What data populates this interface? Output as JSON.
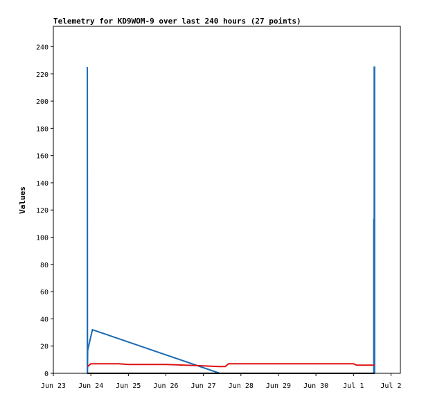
{
  "chart_data": {
    "type": "line",
    "title": "Telemetry for KD9WOM-9 over last 240 hours (27 points)",
    "ylabel": "Values",
    "xlabel": "",
    "ylim": [
      0,
      255
    ],
    "yticks": [
      0,
      20,
      40,
      60,
      80,
      100,
      120,
      140,
      160,
      180,
      200,
      220,
      240
    ],
    "xlim": [
      "2023-06-23T00:00",
      "2023-07-02T06:00"
    ],
    "xticks": [
      {
        "label": "Jun 23",
        "x": "2023-06-23T00:00"
      },
      {
        "label": "Jun 24",
        "x": "2023-06-24T00:00"
      },
      {
        "label": "Jun 25",
        "x": "2023-06-25T00:00"
      },
      {
        "label": "Jun 26",
        "x": "2023-06-26T00:00"
      },
      {
        "label": "Jun 27",
        "x": "2023-06-27T00:00"
      },
      {
        "label": "Jun 28",
        "x": "2023-06-28T00:00"
      },
      {
        "label": "Jun 29",
        "x": "2023-06-29T00:00"
      },
      {
        "label": "Jun 30",
        "x": "2023-06-30T00:00"
      },
      {
        "label": "Jul 1",
        "x": "2023-07-01T00:00"
      },
      {
        "label": "Jul 2",
        "x": "2023-07-02T00:00"
      }
    ],
    "grid": false,
    "series": [
      {
        "color": "#1a6ab3",
        "points": [
          {
            "x": "2023-06-23T21:45",
            "y": 0
          },
          {
            "x": "2023-06-23T21:45",
            "y": 225
          },
          {
            "x": "2023-06-23T21:50",
            "y": 0
          },
          {
            "x": "2023-06-23T22:00",
            "y": 17
          },
          {
            "x": "2023-06-24T01:00",
            "y": 32
          },
          {
            "x": "2023-06-27T10:30",
            "y": 0
          }
        ]
      },
      {
        "color": "#1a6ab3",
        "points": [
          {
            "x": "2023-07-01T13:00",
            "y": 0
          },
          {
            "x": "2023-07-01T13:00",
            "y": 113
          },
          {
            "x": "2023-07-01T13:15",
            "y": 113
          },
          {
            "x": "2023-07-01T13:15",
            "y": 225
          },
          {
            "x": "2023-07-01T13:30",
            "y": 225
          },
          {
            "x": "2023-07-01T13:30",
            "y": 0
          }
        ]
      },
      {
        "color": "#dd1111",
        "points": [
          {
            "x": "2023-06-23T22:00",
            "y": 5
          },
          {
            "x": "2023-06-24T00:00",
            "y": 7
          },
          {
            "x": "2023-06-24T18:00",
            "y": 7
          },
          {
            "x": "2023-06-25T00:00",
            "y": 6.5
          },
          {
            "x": "2023-06-26T00:00",
            "y": 6.5
          },
          {
            "x": "2023-06-27T00:00",
            "y": 5.5
          },
          {
            "x": "2023-06-27T10:00",
            "y": 5
          },
          {
            "x": "2023-06-27T14:00",
            "y": 5
          },
          {
            "x": "2023-06-27T16:00",
            "y": 7
          },
          {
            "x": "2023-07-01T00:00",
            "y": 7
          },
          {
            "x": "2023-07-01T02:00",
            "y": 6
          },
          {
            "x": "2023-07-01T13:30",
            "y": 6
          }
        ]
      },
      {
        "color": "#000000",
        "points": [
          {
            "x": "2023-06-23T21:45",
            "y": 0
          },
          {
            "x": "2023-07-01T13:30",
            "y": 0
          }
        ]
      }
    ]
  }
}
